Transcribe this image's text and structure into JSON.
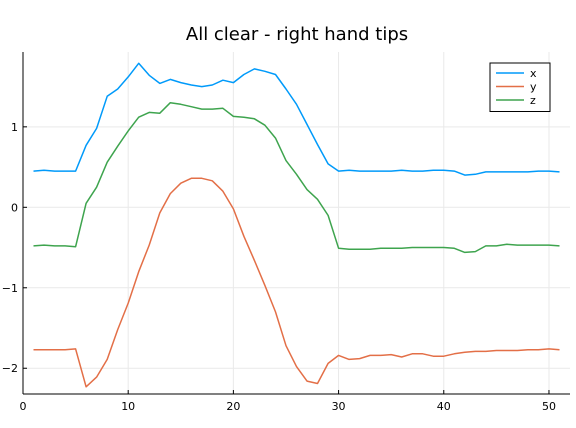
{
  "chart_data": {
    "type": "line",
    "title": "All clear - right hand tips",
    "xlabel": "",
    "ylabel": "",
    "xlim": [
      0,
      52
    ],
    "ylim": [
      -2.32,
      1.93
    ],
    "xticks": [
      0,
      10,
      20,
      30,
      40,
      50
    ],
    "yticks": [
      -2,
      -1,
      0,
      1
    ],
    "ytick_labels": [
      "−2",
      "−1",
      "0",
      "1"
    ],
    "grid": true,
    "legend": "top-right",
    "x": [
      1,
      2,
      3,
      4,
      5,
      6,
      7,
      8,
      9,
      10,
      11,
      12,
      13,
      14,
      15,
      16,
      17,
      18,
      19,
      20,
      21,
      22,
      23,
      24,
      25,
      26,
      27,
      28,
      29,
      30,
      31,
      32,
      33,
      34,
      35,
      36,
      37,
      38,
      39,
      40,
      41,
      42,
      43,
      44,
      45,
      46,
      47,
      48,
      49,
      50,
      51
    ],
    "series": [
      {
        "name": "x",
        "color": "#009AFA",
        "values": [
          0.45,
          0.46,
          0.45,
          0.45,
          0.45,
          0.77,
          0.98,
          1.38,
          1.47,
          1.62,
          1.79,
          1.64,
          1.54,
          1.59,
          1.55,
          1.52,
          1.5,
          1.52,
          1.58,
          1.55,
          1.65,
          1.72,
          1.69,
          1.65,
          1.47,
          1.28,
          1.03,
          0.78,
          0.54,
          0.45,
          0.46,
          0.45,
          0.45,
          0.45,
          0.45,
          0.46,
          0.45,
          0.45,
          0.46,
          0.46,
          0.45,
          0.4,
          0.41,
          0.44,
          0.44,
          0.44,
          0.44,
          0.44,
          0.45,
          0.45,
          0.44
        ]
      },
      {
        "name": "y",
        "color": "#E36F47",
        "values": [
          -1.77,
          -1.77,
          -1.77,
          -1.77,
          -1.76,
          -2.23,
          -2.11,
          -1.89,
          -1.52,
          -1.19,
          -0.8,
          -0.47,
          -0.07,
          0.17,
          0.3,
          0.36,
          0.36,
          0.33,
          0.2,
          -0.02,
          -0.36,
          -0.66,
          -0.97,
          -1.3,
          -1.72,
          -1.98,
          -2.16,
          -2.19,
          -1.94,
          -1.84,
          -1.89,
          -1.88,
          -1.84,
          -1.84,
          -1.83,
          -1.86,
          -1.82,
          -1.82,
          -1.85,
          -1.85,
          -1.82,
          -1.8,
          -1.79,
          -1.79,
          -1.78,
          -1.78,
          -1.78,
          -1.77,
          -1.77,
          -1.76,
          -1.77
        ]
      },
      {
        "name": "z",
        "color": "#3EA44E",
        "values": [
          -0.48,
          -0.47,
          -0.48,
          -0.48,
          -0.49,
          0.05,
          0.25,
          0.56,
          0.76,
          0.95,
          1.12,
          1.18,
          1.17,
          1.3,
          1.28,
          1.25,
          1.22,
          1.22,
          1.23,
          1.13,
          1.12,
          1.1,
          1.02,
          0.86,
          0.58,
          0.41,
          0.22,
          0.1,
          -0.1,
          -0.51,
          -0.52,
          -0.52,
          -0.52,
          -0.51,
          -0.51,
          -0.51,
          -0.5,
          -0.5,
          -0.5,
          -0.5,
          -0.51,
          -0.56,
          -0.55,
          -0.48,
          -0.48,
          -0.46,
          -0.47,
          -0.47,
          -0.47,
          -0.47,
          -0.48
        ]
      }
    ]
  }
}
